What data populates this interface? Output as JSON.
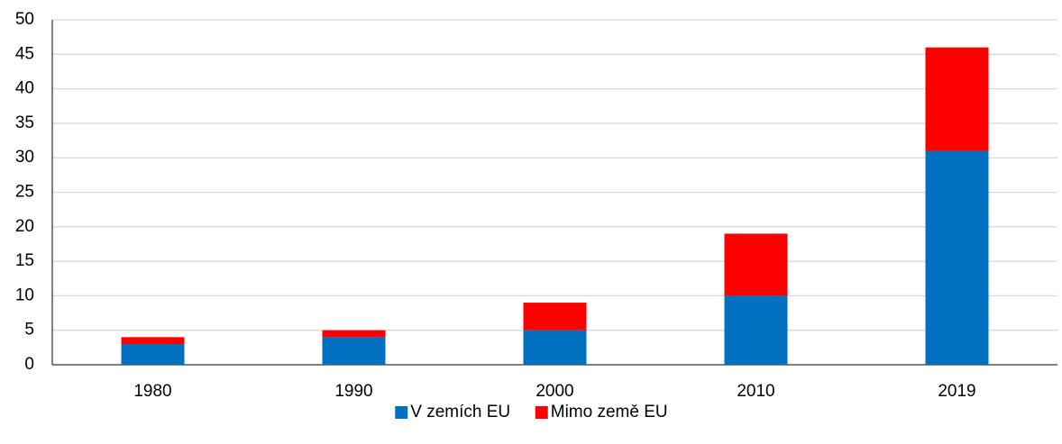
{
  "chart_data": {
    "type": "stacked_bar",
    "categories": [
      "1980",
      "1990",
      "2000",
      "2010",
      "2019"
    ],
    "series": [
      {
        "name": "V zemích EU",
        "color": "#0070c0",
        "values": [
          3,
          4,
          5,
          10,
          31
        ]
      },
      {
        "name": "Mimo země EU",
        "color": "#ff0000",
        "values": [
          1,
          1,
          4,
          9,
          15
        ]
      }
    ],
    "ylim": [
      0,
      50
    ],
    "yticks": [
      0,
      5,
      10,
      15,
      20,
      25,
      30,
      35,
      40,
      45,
      50
    ],
    "grid": true,
    "legend": "bottom"
  }
}
